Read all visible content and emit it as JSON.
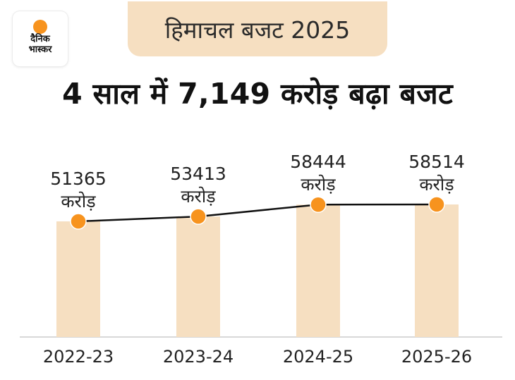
{
  "logo": {
    "line1": "दैनिक",
    "line2": "भास्कर"
  },
  "title": "हिमाचल बजट 2025",
  "headline": "4 साल में 7,149 करोड़ बढ़ा बजट",
  "colors": {
    "bar": "#f6dfc1",
    "point": "#f7931e",
    "line": "#111111",
    "title_bg": "#f6dfc1"
  },
  "chart_data": {
    "type": "bar",
    "categories": [
      "2022-23",
      "2023-24",
      "2024-25",
      "2025-26"
    ],
    "values": [
      51365,
      53413,
      58444,
      58514
    ],
    "unit_label": "करोड़",
    "overlay": "line",
    "title": "4 साल में 7,149 करोड़ बढ़ा बजट",
    "xlabel": "",
    "ylabel": "",
    "grid": false,
    "ylim": [
      0,
      60000
    ]
  }
}
